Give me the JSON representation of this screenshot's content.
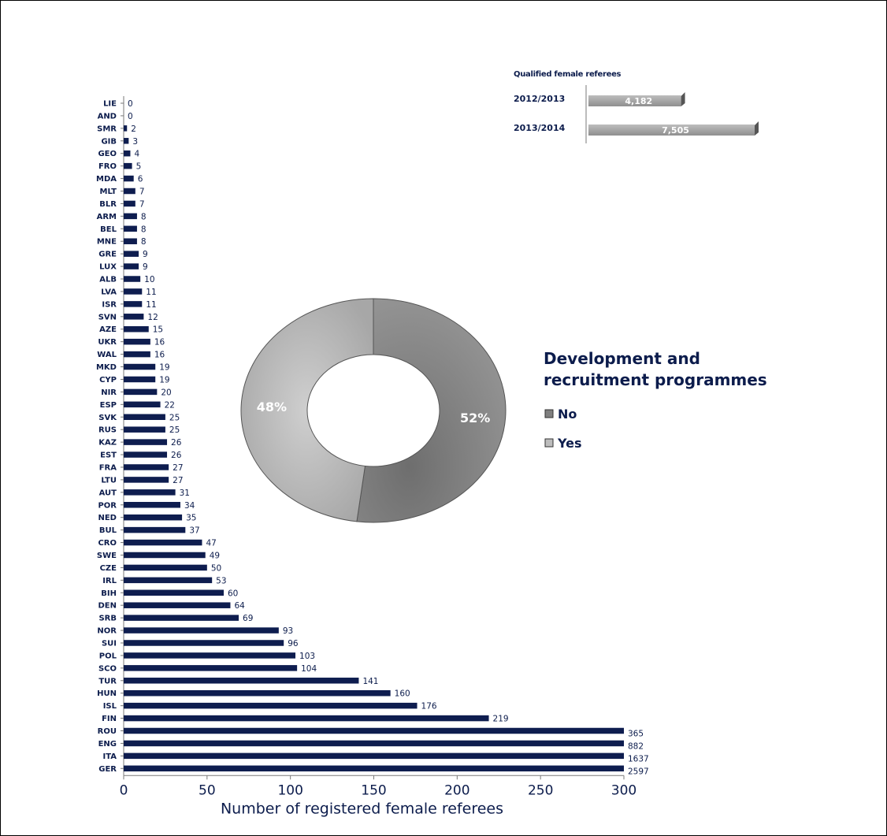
{
  "chart_data": [
    {
      "type": "bar",
      "orientation": "horizontal",
      "xlabel": "Number of registered female referees",
      "xlim": [
        0,
        300
      ],
      "xticks": [
        0,
        50,
        100,
        150,
        200,
        250,
        300
      ],
      "bar_color": "#0e1d4f",
      "categories": [
        "LIE",
        "AND",
        "SMR",
        "GIB",
        "GEO",
        "FRO",
        "MDA",
        "MLT",
        "BLR",
        "ARM",
        "BEL",
        "MNE",
        "GRE",
        "LUX",
        "ALB",
        "LVA",
        "ISR",
        "SVN",
        "AZE",
        "UKR",
        "WAL",
        "MKD",
        "CYP",
        "NIR",
        "ESP",
        "SVK",
        "RUS",
        "KAZ",
        "EST",
        "FRA",
        "LTU",
        "AUT",
        "POR",
        "NED",
        "BUL",
        "CRO",
        "SWE",
        "CZE",
        "IRL",
        "BIH",
        "DEN",
        "SRB",
        "NOR",
        "SUI",
        "POL",
        "SCO",
        "TUR",
        "HUN",
        "ISL",
        "FIN",
        "ROU",
        "ENG",
        "ITA",
        "GER"
      ],
      "values": [
        0,
        0,
        2,
        3,
        4,
        5,
        6,
        7,
        7,
        8,
        8,
        8,
        9,
        9,
        10,
        11,
        11,
        12,
        15,
        16,
        16,
        19,
        19,
        20,
        22,
        25,
        25,
        26,
        26,
        27,
        27,
        31,
        34,
        35,
        37,
        47,
        49,
        50,
        53,
        60,
        64,
        69,
        93,
        96,
        103,
        104,
        141,
        160,
        176,
        219,
        365,
        882,
        1637,
        2597
      ],
      "value_labels": [
        "0",
        "0",
        "2",
        "3",
        "4",
        "5",
        "6",
        "7",
        "7",
        "8",
        "8",
        "8",
        "9",
        "9",
        "10",
        "11",
        "11",
        "12",
        "15",
        "16",
        "16",
        "19",
        "19",
        "20",
        "22",
        "25",
        "25",
        "26",
        "26",
        "27",
        "27",
        "31",
        "34",
        "35",
        "37",
        "47",
        "49",
        "50",
        "53",
        "60",
        "64",
        "69",
        "93",
        "96",
        "103",
        "104",
        "141",
        "160",
        "176",
        "219",
        "365",
        "882",
        "1637",
        "2597"
      ]
    },
    {
      "type": "bar",
      "orientation": "horizontal",
      "title": "Qualified female referees",
      "categories": [
        "2012/2013",
        "2013/2014"
      ],
      "values": [
        4182,
        7505
      ],
      "value_labels": [
        "4,182",
        "7,505"
      ],
      "bar_color": "#a6a6a6"
    },
    {
      "type": "pie",
      "style": "donut",
      "title": "Development and recruitment programmes",
      "labels": [
        "No",
        "Yes"
      ],
      "values": [
        52,
        48
      ],
      "value_labels": [
        "52%",
        "48%"
      ],
      "colors": [
        "#8a8a8a",
        "#b9b9b9"
      ]
    }
  ]
}
